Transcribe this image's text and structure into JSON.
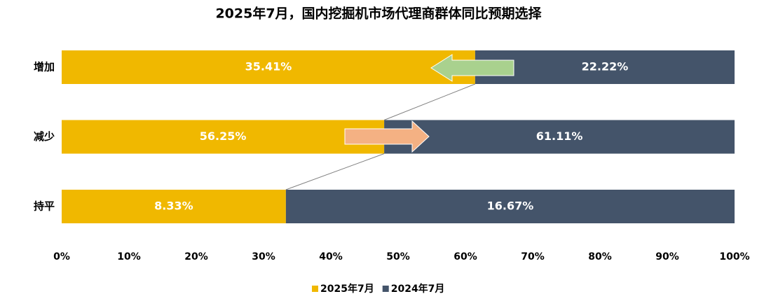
{
  "chart_data": {
    "type": "bar",
    "orientation": "horizontal",
    "stack": "percent",
    "title": "2025年7月，国内挖掘机市场代理商群体同比预期选择",
    "categories": [
      "增加",
      "减少",
      "持平"
    ],
    "series": [
      {
        "name": "2025年7月",
        "color": "#f0b800",
        "values": [
          35.41,
          56.25,
          8.33
        ],
        "value_labels": [
          "35.41%",
          "56.25%",
          "8.33%"
        ]
      },
      {
        "name": "2024年7月",
        "color": "#44546a",
        "values": [
          22.22,
          61.11,
          16.67
        ],
        "value_labels": [
          "22.22%",
          "61.11%",
          "16.67%"
        ]
      }
    ],
    "xlim": [
      0,
      100
    ],
    "xticks": [
      {
        "value": 0,
        "label": "0%"
      },
      {
        "value": 10,
        "label": "10%"
      },
      {
        "value": 20,
        "label": "20%"
      },
      {
        "value": 30,
        "label": "30%"
      },
      {
        "value": 40,
        "label": "40%"
      },
      {
        "value": 50,
        "label": "50%"
      },
      {
        "value": 60,
        "label": "60%"
      },
      {
        "value": 70,
        "label": "70%"
      },
      {
        "value": 80,
        "label": "80%"
      },
      {
        "value": 90,
        "label": "90%"
      },
      {
        "value": 100,
        "label": "100%"
      }
    ],
    "legend": "bottom"
  }
}
